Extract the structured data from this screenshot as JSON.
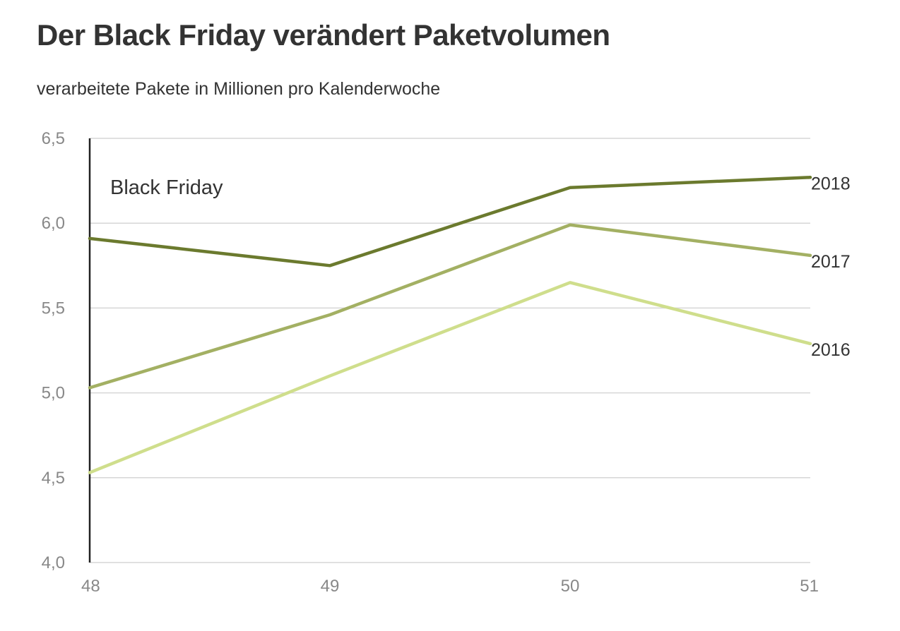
{
  "chart_data": {
    "type": "line",
    "title": "Der Black Friday verändert Paketvolumen",
    "subtitle": "verarbeitete Pakete in Millionen pro Kalenderwoche",
    "xlabel": "",
    "ylabel": "",
    "x": [
      "48",
      "49",
      "50",
      "51"
    ],
    "ylim": [
      4.0,
      6.5
    ],
    "yticks": [
      "4,0",
      "4,5",
      "5,0",
      "5,5",
      "6,0",
      "6,5"
    ],
    "grid": true,
    "series": [
      {
        "name": "2018",
        "color": "#6b7a2e",
        "values": [
          5.91,
          5.75,
          6.21,
          6.27
        ]
      },
      {
        "name": "2017",
        "color": "#a3b063",
        "values": [
          5.03,
          5.46,
          5.99,
          5.81
        ]
      },
      {
        "name": "2016",
        "color": "#cfde8c",
        "values": [
          4.53,
          5.1,
          5.65,
          5.29
        ]
      }
    ],
    "annotation": {
      "label": "Black Friday",
      "x": "48"
    }
  }
}
